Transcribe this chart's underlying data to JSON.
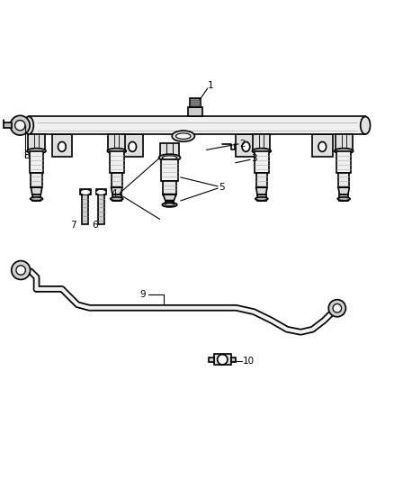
{
  "bg_color": "#ffffff",
  "line_color": "#000000",
  "line_width": 1.2,
  "fig_width": 4.38,
  "fig_height": 5.33,
  "dpi": 100
}
